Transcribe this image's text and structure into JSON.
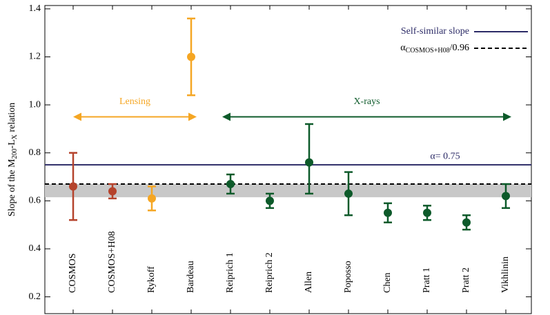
{
  "chart_data": {
    "type": "errorbar",
    "y_label_parts": [
      "Slope of the M",
      "200",
      "-L",
      "X",
      " relation"
    ],
    "categories": [
      "COSMOS",
      "COSMOS+H08",
      "Rykoff",
      "Bardeau",
      "Reiprich 1",
      "Reiprich 2",
      "Allen",
      "Poposso",
      "Chen",
      "Pratt 1",
      "Pratt 2",
      "Vikhlinin"
    ],
    "values": [
      0.66,
      0.64,
      0.61,
      1.2,
      0.67,
      0.6,
      0.76,
      0.63,
      0.55,
      0.55,
      0.51,
      0.62
    ],
    "err_plus": [
      0.14,
      0.03,
      0.05,
      0.16,
      0.04,
      0.03,
      0.16,
      0.09,
      0.04,
      0.03,
      0.03,
      0.05
    ],
    "err_minus": [
      0.14,
      0.03,
      0.05,
      0.16,
      0.04,
      0.03,
      0.13,
      0.09,
      0.04,
      0.03,
      0.03,
      0.05
    ],
    "colors": [
      "#b5432c",
      "#b5432c",
      "#f5a623",
      "#f5a623",
      "#0d5a2a",
      "#0d5a2a",
      "#0d5a2a",
      "#0d5a2a",
      "#0d5a2a",
      "#0d5a2a",
      "#0d5a2a",
      "#0d5a2a"
    ],
    "ylim": [
      0.13,
      1.414
    ],
    "yticks": [
      0.2,
      0.4,
      0.6,
      0.8,
      {
        "value": 1.0,
        "label": "1.0"
      },
      1.2,
      1.4
    ],
    "shaded_band": {
      "range": [
        0.615,
        0.67
      ],
      "color": "#c8c8c8"
    },
    "hlines": [
      {
        "name": "Self-similar slope",
        "value": 0.75,
        "color": "#2b2a66",
        "dashed": false
      },
      {
        "name_parts": [
          "α",
          "COSMOS+H08",
          "/0.96"
        ],
        "value": 0.67,
        "color": "#000000",
        "dashed": true
      }
    ],
    "annotation": {
      "text": "α= 0.75",
      "y": 0.75,
      "color": "#2b2a66"
    },
    "groups": [
      {
        "label": "Lensing",
        "from": 0,
        "to": 3,
        "y": 0.95,
        "color": "#f5a623"
      },
      {
        "label": "X-rays",
        "from": 4,
        "to": 11,
        "y": 0.95,
        "color": "#0d5a2a"
      }
    ],
    "legend": "upper right"
  }
}
